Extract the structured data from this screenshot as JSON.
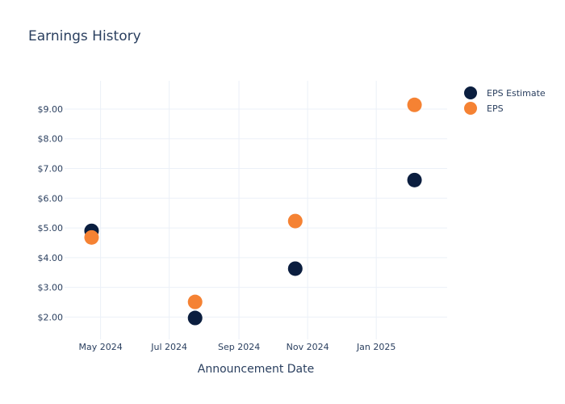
{
  "chart_data": {
    "type": "scatter",
    "title": "Earnings History",
    "xlabel": "Announcement Date",
    "ylabel": "",
    "x_tick_labels": [
      "May 2024",
      "Jul 2024",
      "Sep 2024",
      "Nov 2024",
      "Jan 2025"
    ],
    "x_tick_dates": [
      "2024-05-01",
      "2024-07-01",
      "2024-09-01",
      "2024-11-01",
      "2025-01-01"
    ],
    "y_tick_labels": [
      "$2.00",
      "$3.00",
      "$4.00",
      "$5.00",
      "$6.00",
      "$7.00",
      "$8.00",
      "$9.00"
    ],
    "y_tick_values": [
      2,
      3,
      4,
      5,
      6,
      7,
      8,
      9
    ],
    "xlim": [
      "2024-03-30",
      "2025-03-05"
    ],
    "ylim": [
      1.25,
      9.95
    ],
    "grid": true,
    "legend_position": "top-right",
    "series": [
      {
        "name": "EPS Estimate",
        "color": "#0b1e3f",
        "points": [
          {
            "x": "2024-04-23",
            "y": 4.9
          },
          {
            "x": "2024-07-24",
            "y": 1.97
          },
          {
            "x": "2024-10-21",
            "y": 3.63
          },
          {
            "x": "2025-02-04",
            "y": 6.61
          }
        ]
      },
      {
        "name": "EPS",
        "color": "#f58233",
        "points": [
          {
            "x": "2024-04-23",
            "y": 4.68
          },
          {
            "x": "2024-07-24",
            "y": 2.51
          },
          {
            "x": "2024-10-21",
            "y": 5.23
          },
          {
            "x": "2025-02-04",
            "y": 9.14
          }
        ]
      }
    ]
  }
}
